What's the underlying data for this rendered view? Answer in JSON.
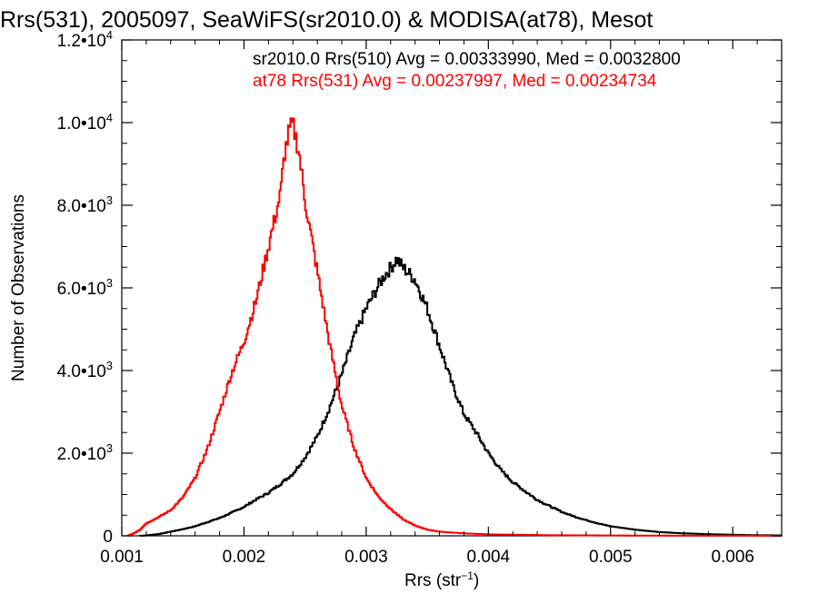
{
  "chart_data": {
    "type": "histogram-step",
    "title": "Rrs(531), 2005097, SeaWiFS(sr2010.0) & MODISA(at78), Mesot",
    "xlabel": "Rrs (str",
    "xlabel_sup": "−1",
    "xlabel_tail": ")",
    "ylabel": "Number of Observations",
    "xlim": [
      0.001,
      0.0064
    ],
    "ylim": [
      0,
      12000
    ],
    "xticks": [
      {
        "value": 0.001,
        "label": "0.001"
      },
      {
        "value": 0.002,
        "label": "0.002"
      },
      {
        "value": 0.003,
        "label": "0.003"
      },
      {
        "value": 0.004,
        "label": "0.004"
      },
      {
        "value": 0.005,
        "label": "0.005"
      },
      {
        "value": 0.006,
        "label": "0.006"
      }
    ],
    "yticks": [
      {
        "value": 0,
        "mant": "0",
        "exp": ""
      },
      {
        "value": 2000,
        "mant": "2.0•10",
        "exp": "3"
      },
      {
        "value": 4000,
        "mant": "4.0•10",
        "exp": "3"
      },
      {
        "value": 6000,
        "mant": "6.0•10",
        "exp": "3"
      },
      {
        "value": 8000,
        "mant": "8.0•10",
        "exp": "3"
      },
      {
        "value": 10000,
        "mant": "1.0•10",
        "exp": "4"
      },
      {
        "value": 12000,
        "mant": "1.2•10",
        "exp": "4"
      }
    ],
    "annotations": [
      {
        "text": "sr2010.0 Rrs(510) Avg = 0.00333990, Med = 0.0032800",
        "color": "#000000"
      },
      {
        "text": "at78 Rrs(531) Avg = 0.00237997, Med = 0.00234734",
        "color": "#ff0000"
      }
    ],
    "series": [
      {
        "color": "#000000",
        "points": [
          [
            0.00115,
            0
          ],
          [
            0.0012,
            10
          ],
          [
            0.0013,
            40
          ],
          [
            0.0014,
            100
          ],
          [
            0.0015,
            160
          ],
          [
            0.0016,
            230
          ],
          [
            0.0017,
            330
          ],
          [
            0.0018,
            430
          ],
          [
            0.0019,
            560
          ],
          [
            0.002,
            700
          ],
          [
            0.0021,
            880
          ],
          [
            0.0022,
            1040
          ],
          [
            0.0023,
            1260
          ],
          [
            0.0024,
            1500
          ],
          [
            0.0025,
            1900
          ],
          [
            0.0026,
            2400
          ],
          [
            0.0027,
            3100
          ],
          [
            0.0028,
            3900
          ],
          [
            0.0029,
            4800
          ],
          [
            0.003,
            5500
          ],
          [
            0.0031,
            6050
          ],
          [
            0.00315,
            6300
          ],
          [
            0.0032,
            6480
          ],
          [
            0.00325,
            6700
          ],
          [
            0.0033,
            6500
          ],
          [
            0.0034,
            6200
          ],
          [
            0.0035,
            5500
          ],
          [
            0.0036,
            4600
          ],
          [
            0.0037,
            3700
          ],
          [
            0.0038,
            2950
          ],
          [
            0.0039,
            2500
          ],
          [
            0.004,
            2000
          ],
          [
            0.0041,
            1600
          ],
          [
            0.0042,
            1300
          ],
          [
            0.0043,
            1080
          ],
          [
            0.0044,
            870
          ],
          [
            0.0045,
            720
          ],
          [
            0.0046,
            580
          ],
          [
            0.0047,
            470
          ],
          [
            0.0048,
            380
          ],
          [
            0.0049,
            300
          ],
          [
            0.005,
            230
          ],
          [
            0.0052,
            150
          ],
          [
            0.0054,
            90
          ],
          [
            0.0056,
            60
          ],
          [
            0.0058,
            40
          ],
          [
            0.006,
            25
          ],
          [
            0.0062,
            15
          ],
          [
            0.0064,
            10
          ]
        ]
      },
      {
        "color": "#ff0000",
        "points": [
          [
            0.00105,
            0
          ],
          [
            0.0011,
            60
          ],
          [
            0.00115,
            150
          ],
          [
            0.0012,
            300
          ],
          [
            0.0013,
            450
          ],
          [
            0.0014,
            620
          ],
          [
            0.0015,
            930
          ],
          [
            0.0016,
            1400
          ],
          [
            0.0017,
            2100
          ],
          [
            0.0018,
            3000
          ],
          [
            0.0019,
            3950
          ],
          [
            0.002,
            4700
          ],
          [
            0.0021,
            5700
          ],
          [
            0.0022,
            7000
          ],
          [
            0.0023,
            8300
          ],
          [
            0.00233,
            9200
          ],
          [
            0.00237,
            9800
          ],
          [
            0.0024,
            9950
          ],
          [
            0.00245,
            9300
          ],
          [
            0.0025,
            8100
          ],
          [
            0.0026,
            6400
          ],
          [
            0.0027,
            4650
          ],
          [
            0.0028,
            3150
          ],
          [
            0.0029,
            2150
          ],
          [
            0.003,
            1400
          ],
          [
            0.0031,
            950
          ],
          [
            0.0032,
            650
          ],
          [
            0.0033,
            400
          ],
          [
            0.0034,
            250
          ],
          [
            0.0035,
            150
          ],
          [
            0.0036,
            100
          ],
          [
            0.0038,
            60
          ],
          [
            0.004,
            35
          ],
          [
            0.0045,
            15
          ],
          [
            0.005,
            8
          ],
          [
            0.0055,
            4
          ],
          [
            0.006,
            2
          ],
          [
            0.0064,
            1
          ]
        ]
      }
    ]
  }
}
